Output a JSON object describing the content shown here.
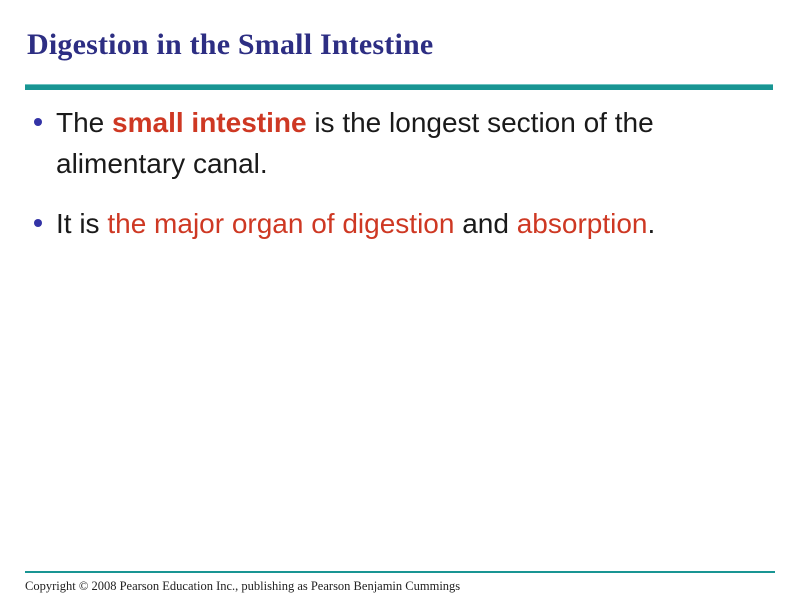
{
  "slide": {
    "title": "Digestion in the Small Intestine",
    "bullets": [
      {
        "segments": [
          {
            "text": "The ",
            "style": "plain"
          },
          {
            "text": "small intestine",
            "style": "accent-bold"
          },
          {
            "text": " is the longest section of the alimentary canal.",
            "style": "plain"
          }
        ]
      },
      {
        "segments": [
          {
            "text": "It is ",
            "style": "plain"
          },
          {
            "text": "the major organ of digestion",
            "style": "accent"
          },
          {
            "text": " and ",
            "style": "plain"
          },
          {
            "text": "absorption",
            "style": "accent"
          },
          {
            "text": ".",
            "style": "plain"
          }
        ]
      }
    ],
    "footer": {
      "copyright": "Copyright © 2008 Pearson Education Inc., publishing as Pearson Benjamin Cummings"
    }
  },
  "colors": {
    "title-navy": "#2d2e83",
    "bullet-navy": "#3333a6",
    "accent-red": "#ce3823",
    "rule-teal": "#199593",
    "body-text": "#1a1a1a",
    "footer-text": "#222222"
  }
}
